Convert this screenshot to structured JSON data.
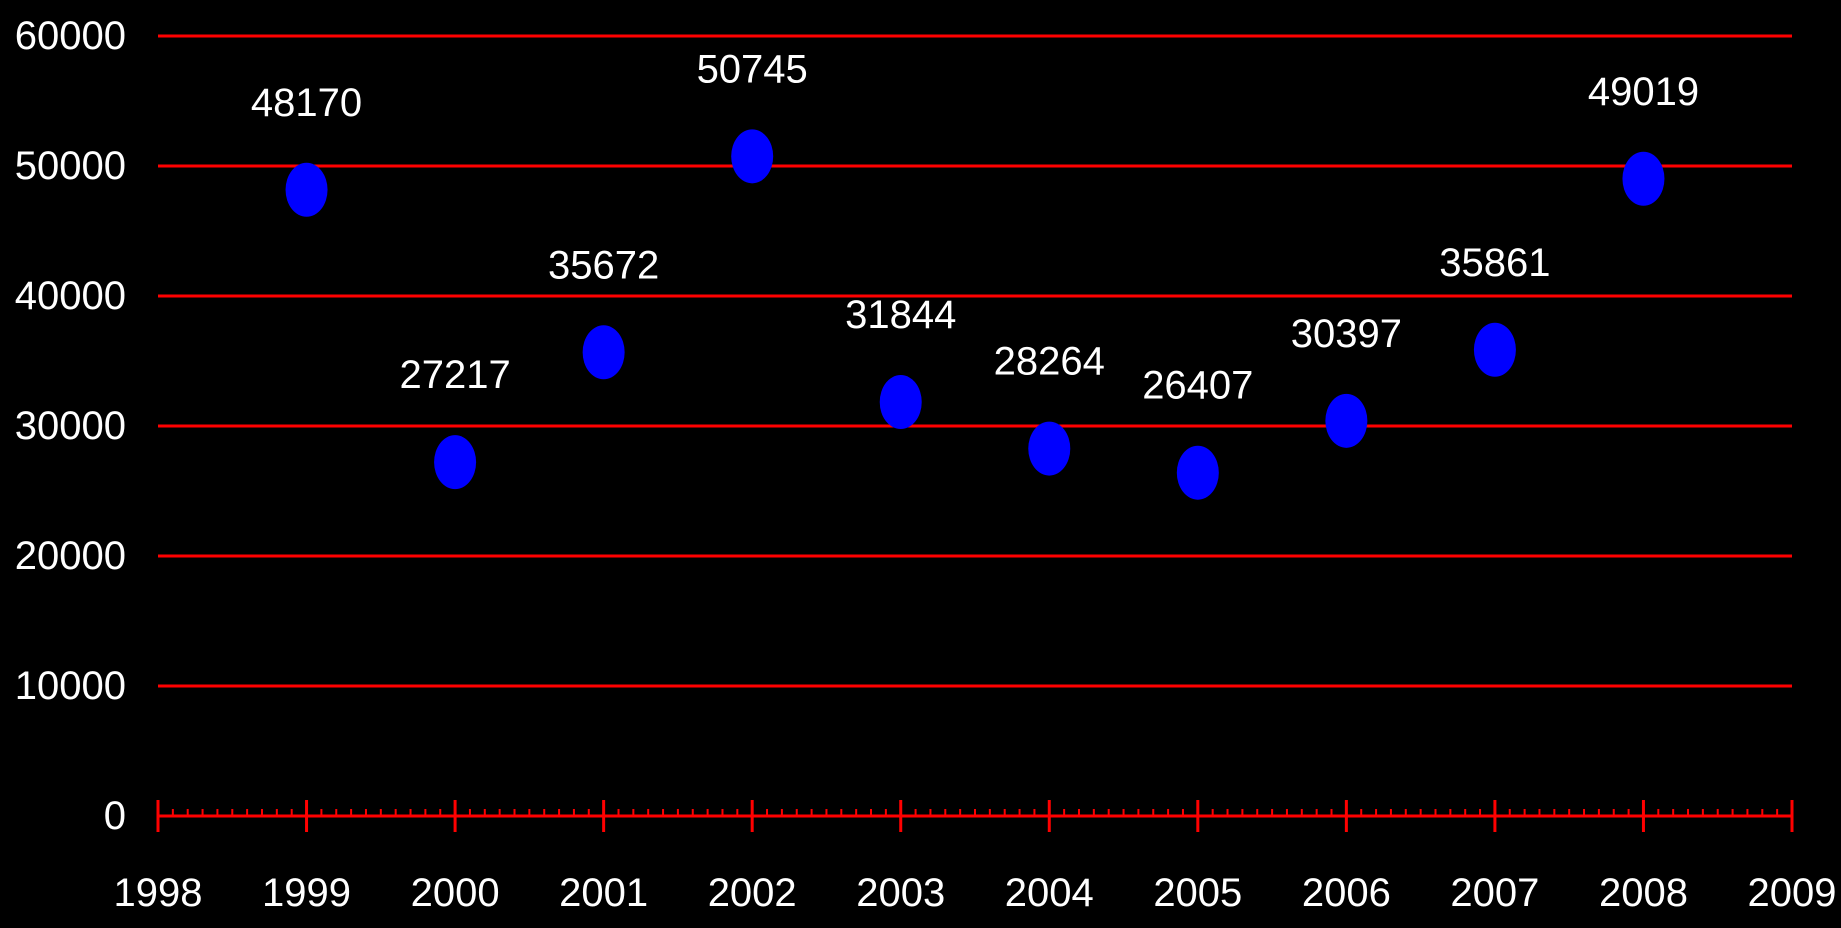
{
  "chart_data": {
    "type": "scatter",
    "title": "",
    "xlabel": "",
    "ylabel": "",
    "xlim": [
      1998,
      2009
    ],
    "ylim": [
      0,
      60000
    ],
    "x_ticks": [
      "1998",
      "1999",
      "2000",
      "2001",
      "2002",
      "2003",
      "2004",
      "2005",
      "2006",
      "2007",
      "2008",
      "2009"
    ],
    "y_ticks": [
      "0",
      "10000",
      "20000",
      "30000",
      "40000",
      "50000",
      "60000"
    ],
    "grid": true,
    "legend": "none",
    "colors": {
      "background": "#000000",
      "grid": "#ff0000",
      "axis": "#ff0000",
      "point": "#0000ff",
      "text": "#ffffff"
    },
    "series": [
      {
        "x": [
          1999,
          2000,
          2001,
          2002,
          2003,
          2004,
          2005,
          2006,
          2007,
          2008
        ],
        "values": [
          48170,
          27217,
          35672,
          50745,
          31844,
          28264,
          26407,
          30397,
          35861,
          49019
        ],
        "labels": [
          "48170",
          "27217",
          "35672",
          "50745",
          "31844",
          "28264",
          "26407",
          "30397",
          "35861",
          "49019"
        ]
      }
    ]
  }
}
